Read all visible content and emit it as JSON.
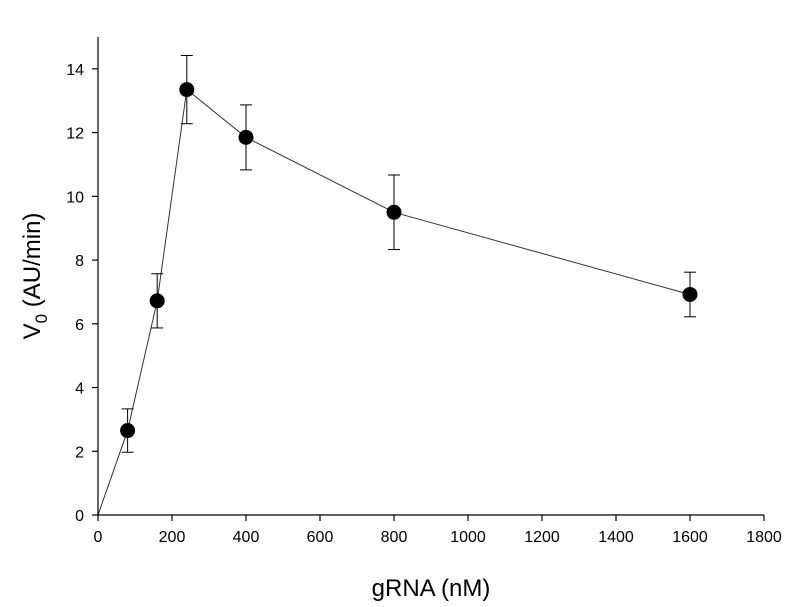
{
  "chart_data": {
    "type": "line",
    "title": "",
    "xlabel": "gRNA (nM)",
    "ylabel_main": "V",
    "ylabel_sub": "0",
    "ylabel_rest": " (AU/min)",
    "xlim": [
      0,
      1800
    ],
    "ylim": [
      0,
      15
    ],
    "xticks": [
      0,
      200,
      400,
      600,
      800,
      1000,
      1200,
      1400,
      1600,
      1800
    ],
    "yticks": [
      0,
      2,
      4,
      6,
      8,
      10,
      12,
      14
    ],
    "grid": false,
    "line_color": "#333333",
    "marker_color": "#000000",
    "series": [
      {
        "x": [
          0,
          80,
          160,
          240,
          400,
          800,
          1600
        ],
        "y": [
          0,
          2.65,
          6.72,
          13.35,
          11.85,
          9.5,
          6.92
        ],
        "err": [
          0,
          0.68,
          0.85,
          1.07,
          1.02,
          1.17,
          0.7
        ],
        "markers": [
          false,
          true,
          true,
          true,
          true,
          true,
          true
        ]
      }
    ]
  }
}
